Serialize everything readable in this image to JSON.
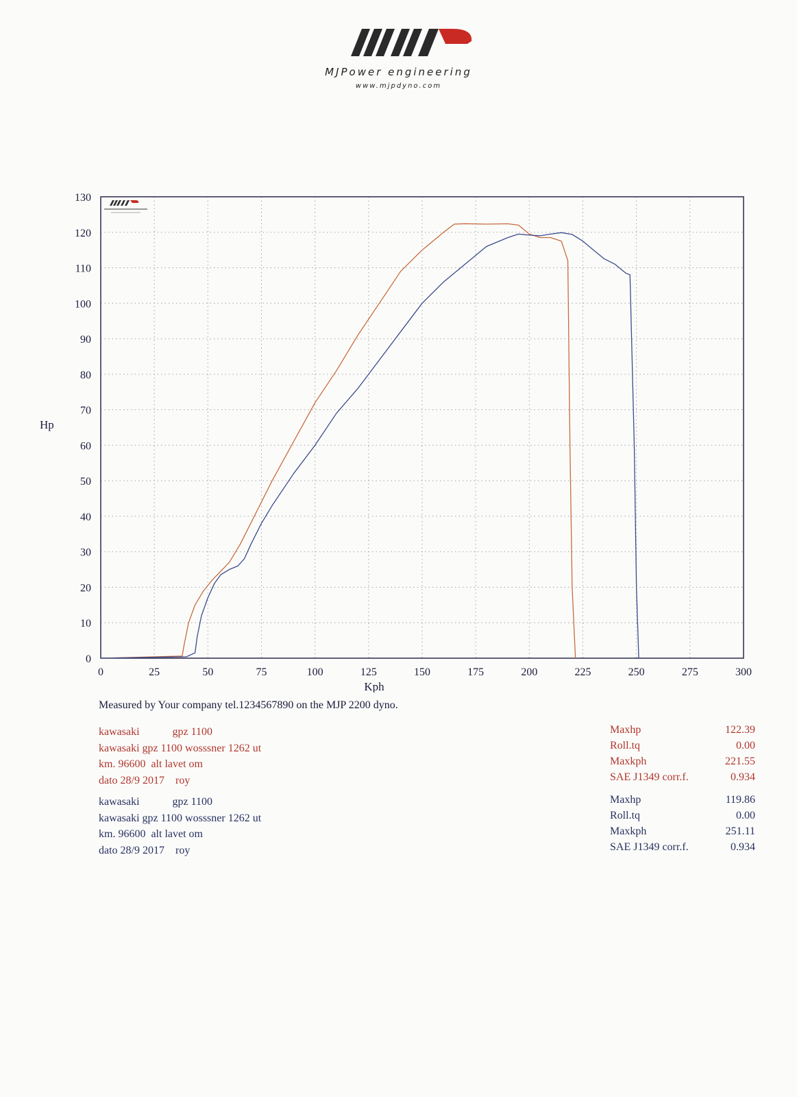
{
  "header": {
    "brand": "MJPower engineering",
    "url": "www.mjpdyno.com",
    "logo_letters": "MJP"
  },
  "colors": {
    "run1": "#c86a3c",
    "run2": "#3b4a8c",
    "grid": "#a0a0a8",
    "frame": "#2a2a4a"
  },
  "chart_data": {
    "type": "line",
    "xlabel": "Kph",
    "ylabel": "Hp",
    "xlim": [
      0,
      300
    ],
    "ylim": [
      0,
      130
    ],
    "x_ticks": [
      0,
      25,
      50,
      75,
      100,
      125,
      150,
      175,
      200,
      225,
      250,
      275,
      300
    ],
    "y_ticks": [
      0,
      10,
      20,
      30,
      40,
      50,
      60,
      70,
      80,
      90,
      100,
      110,
      120,
      130
    ],
    "grid": true,
    "series": [
      {
        "color": "#c86a3c",
        "x": [
          0,
          20,
          38,
          39,
          41,
          44,
          48,
          52,
          56,
          60,
          65,
          70,
          75,
          80,
          90,
          100,
          110,
          120,
          130,
          140,
          150,
          160,
          165,
          170,
          180,
          190,
          195,
          200,
          205,
          210,
          215,
          218,
          219,
          220,
          221.55
        ],
        "y": [
          0,
          0.3,
          0.6,
          4,
          10,
          15,
          19,
          22,
          24.5,
          27,
          32,
          38,
          44,
          50,
          61,
          72,
          81,
          91,
          100,
          109,
          115,
          120,
          122.3,
          122.4,
          122.3,
          122.39,
          122,
          119.5,
          118.5,
          118.5,
          117.5,
          112,
          60,
          20,
          0
        ]
      },
      {
        "color": "#3b4a8c",
        "x": [
          0,
          20,
          40,
          44,
          45,
          47,
          50,
          53,
          56,
          60,
          64,
          67,
          70,
          75,
          80,
          90,
          100,
          110,
          120,
          130,
          140,
          150,
          160,
          170,
          180,
          190,
          195,
          200,
          205,
          210,
          215,
          220,
          225,
          230,
          235,
          240,
          245,
          247,
          249,
          250,
          251.11
        ],
        "y": [
          0,
          0.2,
          0.4,
          1.5,
          6,
          12,
          17,
          21,
          23.5,
          25,
          26,
          28,
          32,
          38,
          43,
          52,
          60,
          69,
          76,
          84,
          92,
          100,
          106,
          111,
          116,
          118.5,
          119.5,
          119.2,
          119,
          119.5,
          119.9,
          119.4,
          117.5,
          115,
          112.5,
          111,
          108.5,
          108,
          60,
          20,
          0
        ]
      }
    ]
  },
  "measured_line": "Measured by Your company tel.1234567890 on the MJP 2200 dyno.",
  "runs": [
    {
      "lines": [
        "kawasaki            gpz 1100",
        "kawasaki gpz 1100 wosssner 1262 ut",
        "km. 96600  alt lavet om",
        "dato 28/9 2017    roy"
      ],
      "stats": [
        {
          "label": "Maxhp",
          "value": "122.39"
        },
        {
          "label": "Roll.tq",
          "value": "0.00"
        },
        {
          "label": "Maxkph",
          "value": "221.55"
        },
        {
          "label": "SAE J1349 corr.f.",
          "value": "0.934"
        }
      ]
    },
    {
      "lines": [
        "kawasaki            gpz 1100",
        "kawasaki gpz 1100 wosssner 1262 ut",
        "km. 96600  alt lavet om",
        "dato 28/9 2017    roy"
      ],
      "stats": [
        {
          "label": "Maxhp",
          "value": "119.86"
        },
        {
          "label": "Roll.tq",
          "value": "0.00"
        },
        {
          "label": "Maxkph",
          "value": "251.11"
        },
        {
          "label": "SAE J1349 corr.f.",
          "value": "0.934"
        }
      ]
    }
  ]
}
